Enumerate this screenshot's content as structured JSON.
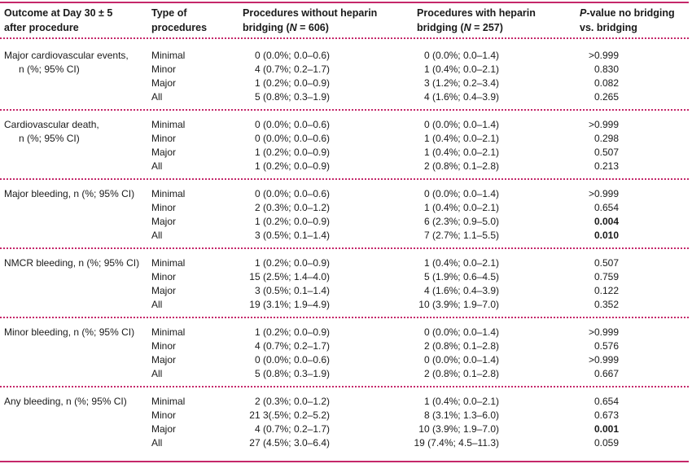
{
  "header": {
    "outcome_line1": "Outcome at Day 30 ± 5",
    "outcome_line2": "after procedure",
    "type_line1": "Type of",
    "type_line2": "procedures",
    "no_bridging_line1": "Procedures without heparin",
    "no_bridging_line2_prefix": "bridging (",
    "no_bridging_line2_n": "N",
    "no_bridging_line2_suffix": " = 606)",
    "with_bridging_line1": "Procedures with heparin",
    "with_bridging_line2_prefix": "bridging (",
    "with_bridging_line2_n": "N",
    "with_bridging_line2_suffix": " = 257)",
    "pvalue_line1_p": "P",
    "pvalue_line1_rest": "-value no bridging",
    "pvalue_line2": "vs. bridging"
  },
  "types": [
    "Minimal",
    "Minor",
    "Major",
    "All"
  ],
  "groups": [
    {
      "label_line1": "Major cardiovascular events,",
      "label_line2": "n (%; 95% CI)",
      "rows": [
        {
          "no": "0 (0.0%; 0.0–0.6)",
          "with": "0 (0.0%; 0.0–1.4)",
          "p": ">0.999",
          "bold": false
        },
        {
          "no": "4 (0.7%; 0.2–1.7)",
          "with": "1 (0.4%; 0.0–2.1)",
          "p": "0.830",
          "bold": false
        },
        {
          "no": "1 (0.2%; 0.0–0.9)",
          "with": "3 (1.2%; 0.2–3.4)",
          "p": "0.082",
          "bold": false
        },
        {
          "no": "5 (0.8%; 0.3–1.9)",
          "with": "4 (1.6%; 0.4–3.9)",
          "p": "0.265",
          "bold": false
        }
      ]
    },
    {
      "label_line1": "Cardiovascular death,",
      "label_line2": "n (%; 95% CI)",
      "rows": [
        {
          "no": "0 (0.0%; 0.0–0.6)",
          "with": "0 (0.0%; 0.0–1.4)",
          "p": ">0.999",
          "bold": false
        },
        {
          "no": "0 (0.0%; 0.0–0.6)",
          "with": "1 (0.4%; 0.0–2.1)",
          "p": "0.298",
          "bold": false
        },
        {
          "no": "1 (0.2%; 0.0–0.9)",
          "with": "1 (0.4%; 0.0–2.1)",
          "p": "0.507",
          "bold": false
        },
        {
          "no": "1 (0.2%; 0.0–0.9)",
          "with": "2 (0.8%; 0.1–2.8)",
          "p": "0.213",
          "bold": false
        }
      ]
    },
    {
      "label_line1": "Major bleeding, n (%; 95% CI)",
      "label_line2": "",
      "rows": [
        {
          "no": "0 (0.0%; 0.0–0.6)",
          "with": "0 (0.0%; 0.0–1.4)",
          "p": ">0.999",
          "bold": false
        },
        {
          "no": "2 (0.3%; 0.0–1.2)",
          "with": "1 (0.4%; 0.0–2.1)",
          "p": "0.654",
          "bold": false
        },
        {
          "no": "1 (0.2%; 0.0–0.9)",
          "with": "6 (2.3%; 0.9–5.0)",
          "p": "0.004",
          "bold": true
        },
        {
          "no": "3 (0.5%; 0.1–1.4)",
          "with": "7 (2.7%; 1.1–5.5)",
          "p": "0.010",
          "bold": true
        }
      ]
    },
    {
      "label_line1": "NMCR bleeding, n (%; 95% CI)",
      "label_line2": "",
      "rows": [
        {
          "no": "1 (0.2%; 0.0–0.9)",
          "with": "1 (0.4%; 0.0–2.1)",
          "p": "0.507",
          "bold": false
        },
        {
          "no": "15 (2.5%; 1.4–4.0)",
          "with": "5 (1.9%; 0.6–4.5)",
          "p": "0.759",
          "bold": false
        },
        {
          "no": "3 (0.5%; 0.1–1.4)",
          "with": "4 (1.6%; 0.4–3.9)",
          "p": "0.122",
          "bold": false
        },
        {
          "no": "19 (3.1%; 1.9–4.9)",
          "with": "10 (3.9%; 1.9–7.0)",
          "p": "0.352",
          "bold": false
        }
      ]
    },
    {
      "label_line1": "Minor bleeding, n (%; 95% CI)",
      "label_line2": "",
      "rows": [
        {
          "no": "1 (0.2%; 0.0–0.9)",
          "with": "0 (0.0%; 0.0–1.4)",
          "p": ">0.999",
          "bold": false
        },
        {
          "no": "4 (0.7%; 0.2–1.7)",
          "with": "2 (0.8%; 0.1–2.8)",
          "p": "0.576",
          "bold": false
        },
        {
          "no": "0 (0.0%; 0.0–0.6)",
          "with": "0 (0.0%; 0.0–1.4)",
          "p": ">0.999",
          "bold": false
        },
        {
          "no": "5 (0.8%; 0.3–1.9)",
          "with": "2 (0.8%; 0.1–2.8)",
          "p": "0.667",
          "bold": false
        }
      ]
    },
    {
      "label_line1": "Any bleeding, n (%; 95% CI)",
      "label_line2": "",
      "rows": [
        {
          "no": "2 (0.3%; 0.0–1.2)",
          "with": "1 (0.4%; 0.0–2.1)",
          "p": "0.654",
          "bold": false
        },
        {
          "no": "21 3(.5%; 0.2–5.2)",
          "with": "8 (3.1%; 1.3–6.0)",
          "p": "0.673",
          "bold": false
        },
        {
          "no": "4 (0.7%; 0.2–1.7)",
          "with": "10 (3.9%; 1.9–7.0)",
          "p": "0.001",
          "bold": true
        },
        {
          "no": "27 (4.5%; 3.0–6.4)",
          "with": "19 (7.4%; 4.5–11.3)",
          "p": "0.059",
          "bold": false
        }
      ]
    }
  ]
}
